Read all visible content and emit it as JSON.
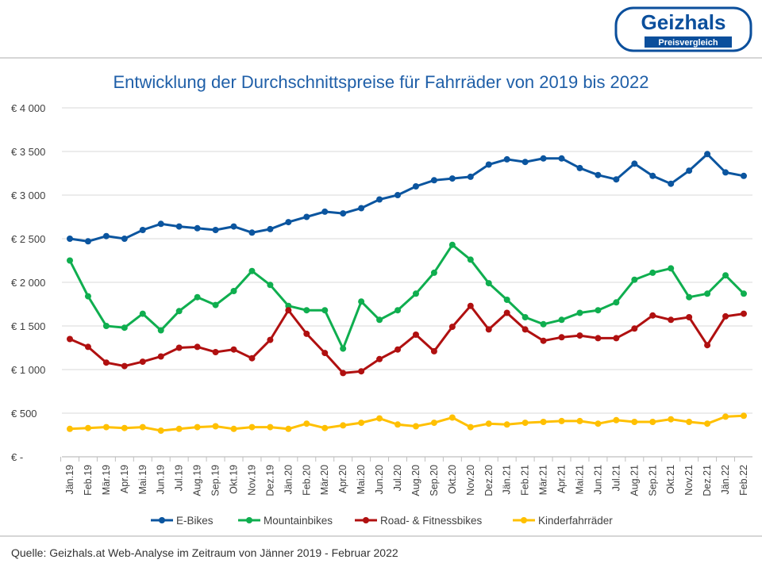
{
  "logo": {
    "name": "Geizhals",
    "tagline": "Preisvergleich"
  },
  "footer": {
    "source": "Quelle: Geizhals.at Web-Analyse im Zeitraum von Jänner 2019 - Februar 2022"
  },
  "chart_data": {
    "type": "line",
    "title": "Entwicklung der Durchschnittspreise für Fahrräder von 2019 bis 2022",
    "xlabel": "",
    "ylabel": "",
    "ylim": [
      0,
      4000
    ],
    "yticks": [
      0,
      500,
      1000,
      1500,
      2000,
      2500,
      3000,
      3500,
      4000
    ],
    "ytick_labels": [
      "€ -",
      "€ 500",
      "€ 1 000",
      "€ 1 500",
      "€ 2 000",
      "€ 2 500",
      "€ 3 000",
      "€ 3 500",
      "€ 4 000"
    ],
    "grid": true,
    "legend": "bottom",
    "categories": [
      "Jän.19",
      "Feb.19",
      "Mär.19",
      "Apr.19",
      "Mai.19",
      "Jun.19",
      "Jul.19",
      "Aug.19",
      "Sep.19",
      "Okt.19",
      "Nov.19",
      "Dez.19",
      "Jän.20",
      "Feb.20",
      "Mär.20",
      "Apr.20",
      "Mai.20",
      "Jun.20",
      "Jul.20",
      "Aug.20",
      "Sep.20",
      "Okt.20",
      "Nov.20",
      "Dez.20",
      "Jän.21",
      "Feb.21",
      "Mär.21",
      "Apr.21",
      "Mai.21",
      "Jun.21",
      "Jul.21",
      "Aug.21",
      "Sep.21",
      "Okt.21",
      "Nov.21",
      "Dez.21",
      "Jän.22",
      "Feb.22"
    ],
    "series": [
      {
        "name": "E-Bikes",
        "color": "#0b559f",
        "values": [
          2500,
          2470,
          2530,
          2500,
          2600,
          2670,
          2640,
          2620,
          2600,
          2640,
          2570,
          2610,
          2690,
          2750,
          2810,
          2790,
          2850,
          2950,
          3000,
          3100,
          3170,
          3190,
          3210,
          3350,
          3410,
          3380,
          3420,
          3420,
          3310,
          3230,
          3180,
          3360,
          3220,
          3130,
          3280,
          3470,
          3260,
          3220
        ]
      },
      {
        "name": "Mountainbikes",
        "color": "#0fae4f",
        "values": [
          2250,
          1840,
          1500,
          1480,
          1640,
          1450,
          1670,
          1830,
          1740,
          1900,
          2130,
          1970,
          1730,
          1680,
          1680,
          1240,
          1780,
          1570,
          1680,
          1870,
          2110,
          2430,
          2260,
          1990,
          1800,
          1600,
          1520,
          1570,
          1650,
          1680,
          1770,
          2030,
          2110,
          2160,
          1830,
          1870,
          2080,
          1870
        ]
      },
      {
        "name": "Road- & Fitnessbikes",
        "color": "#b01010",
        "values": [
          1350,
          1260,
          1080,
          1040,
          1090,
          1150,
          1250,
          1260,
          1200,
          1230,
          1130,
          1340,
          1680,
          1410,
          1190,
          960,
          980,
          1120,
          1230,
          1400,
          1210,
          1490,
          1730,
          1460,
          1650,
          1460,
          1330,
          1370,
          1390,
          1360,
          1360,
          1470,
          1620,
          1570,
          1600,
          1280,
          1610,
          1640
        ]
      },
      {
        "name": "Kinderfahrräder",
        "color": "#ffc000",
        "values": [
          320,
          330,
          340,
          330,
          340,
          300,
          320,
          340,
          350,
          320,
          340,
          340,
          320,
          380,
          330,
          360,
          390,
          440,
          370,
          350,
          390,
          450,
          340,
          380,
          370,
          390,
          400,
          410,
          410,
          380,
          420,
          400,
          400,
          430,
          400,
          380,
          460,
          470
        ]
      }
    ]
  }
}
